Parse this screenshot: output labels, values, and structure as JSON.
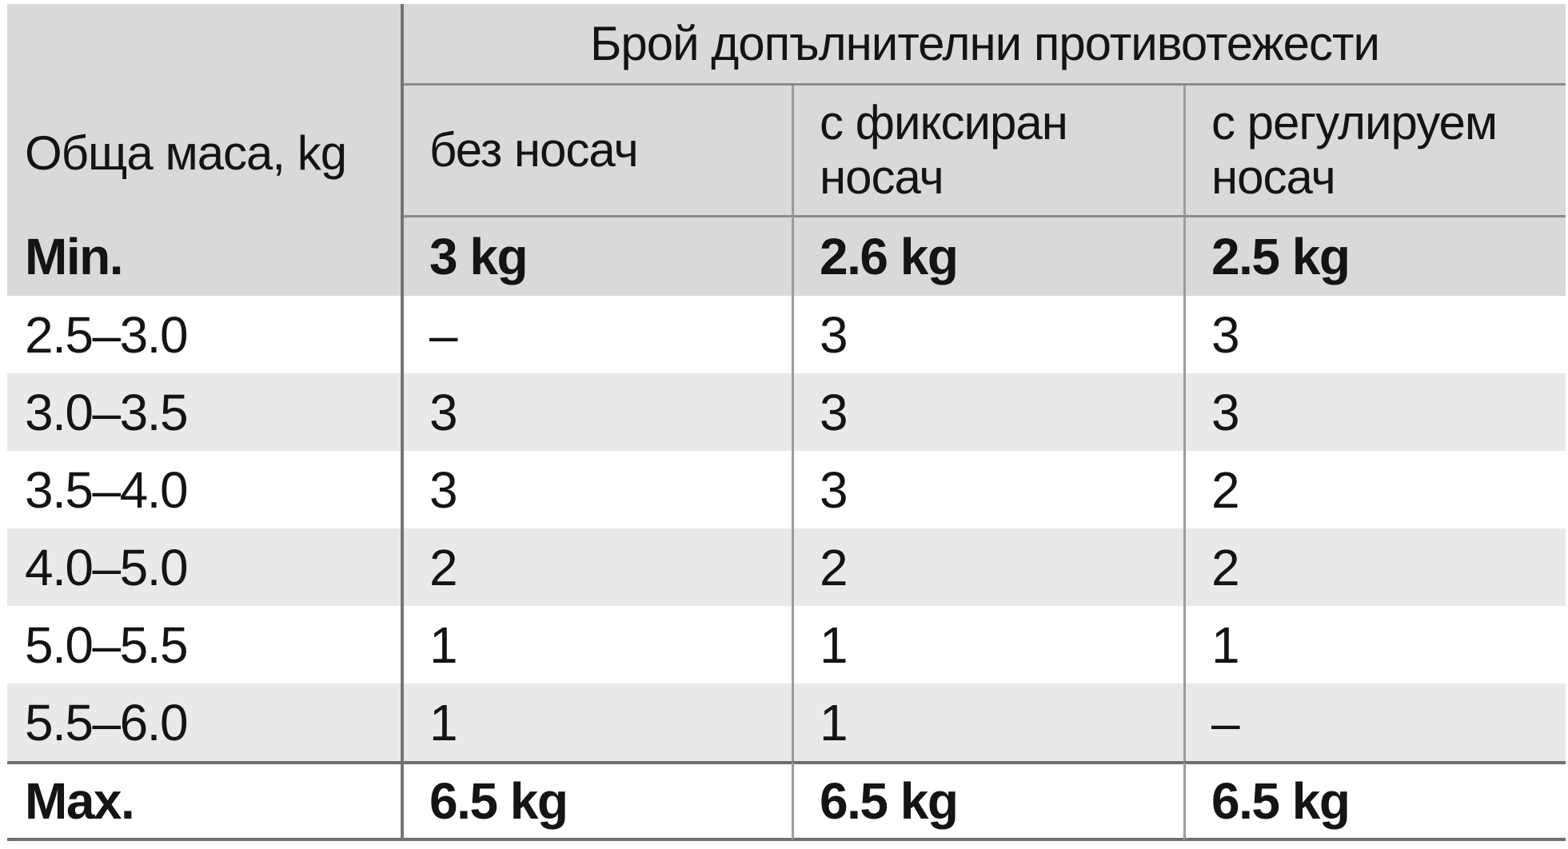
{
  "table": {
    "col1_header": "Обща маса, kg",
    "span_header": "Брой допълнителни противотежести",
    "col_headers": [
      "без носач",
      "с фиксиран носач",
      "с регулируем носач"
    ],
    "min_row": {
      "label": "Min.",
      "values": [
        "3 kg",
        "2.6 kg",
        "2.5 kg"
      ]
    },
    "rows": [
      {
        "range": "2.5–3.0",
        "values": [
          "–",
          "3",
          "3"
        ]
      },
      {
        "range": "3.0–3.5",
        "values": [
          "3",
          "3",
          "3"
        ]
      },
      {
        "range": "3.5–4.0",
        "values": [
          "3",
          "3",
          "2"
        ]
      },
      {
        "range": "4.0–5.0",
        "values": [
          "2",
          "2",
          "2"
        ]
      },
      {
        "range": "5.0–5.5",
        "values": [
          "1",
          "1",
          "1"
        ]
      },
      {
        "range": "5.5–6.0",
        "values": [
          "1",
          "1",
          "–"
        ]
      }
    ],
    "max_row": {
      "label": "Max.",
      "values": [
        "6.5 kg",
        "6.5 kg",
        "6.5 kg"
      ]
    }
  },
  "colors": {
    "header_bg": "#d9d9d9",
    "row_alt_bg": "#e9e9e9",
    "row_bg": "#ffffff",
    "border_heavy": "#757575",
    "border_thin": "#9c9c9c",
    "border_hline": "#8b8b8b",
    "border_thick": "#6e6e6e",
    "text": "#141414"
  }
}
